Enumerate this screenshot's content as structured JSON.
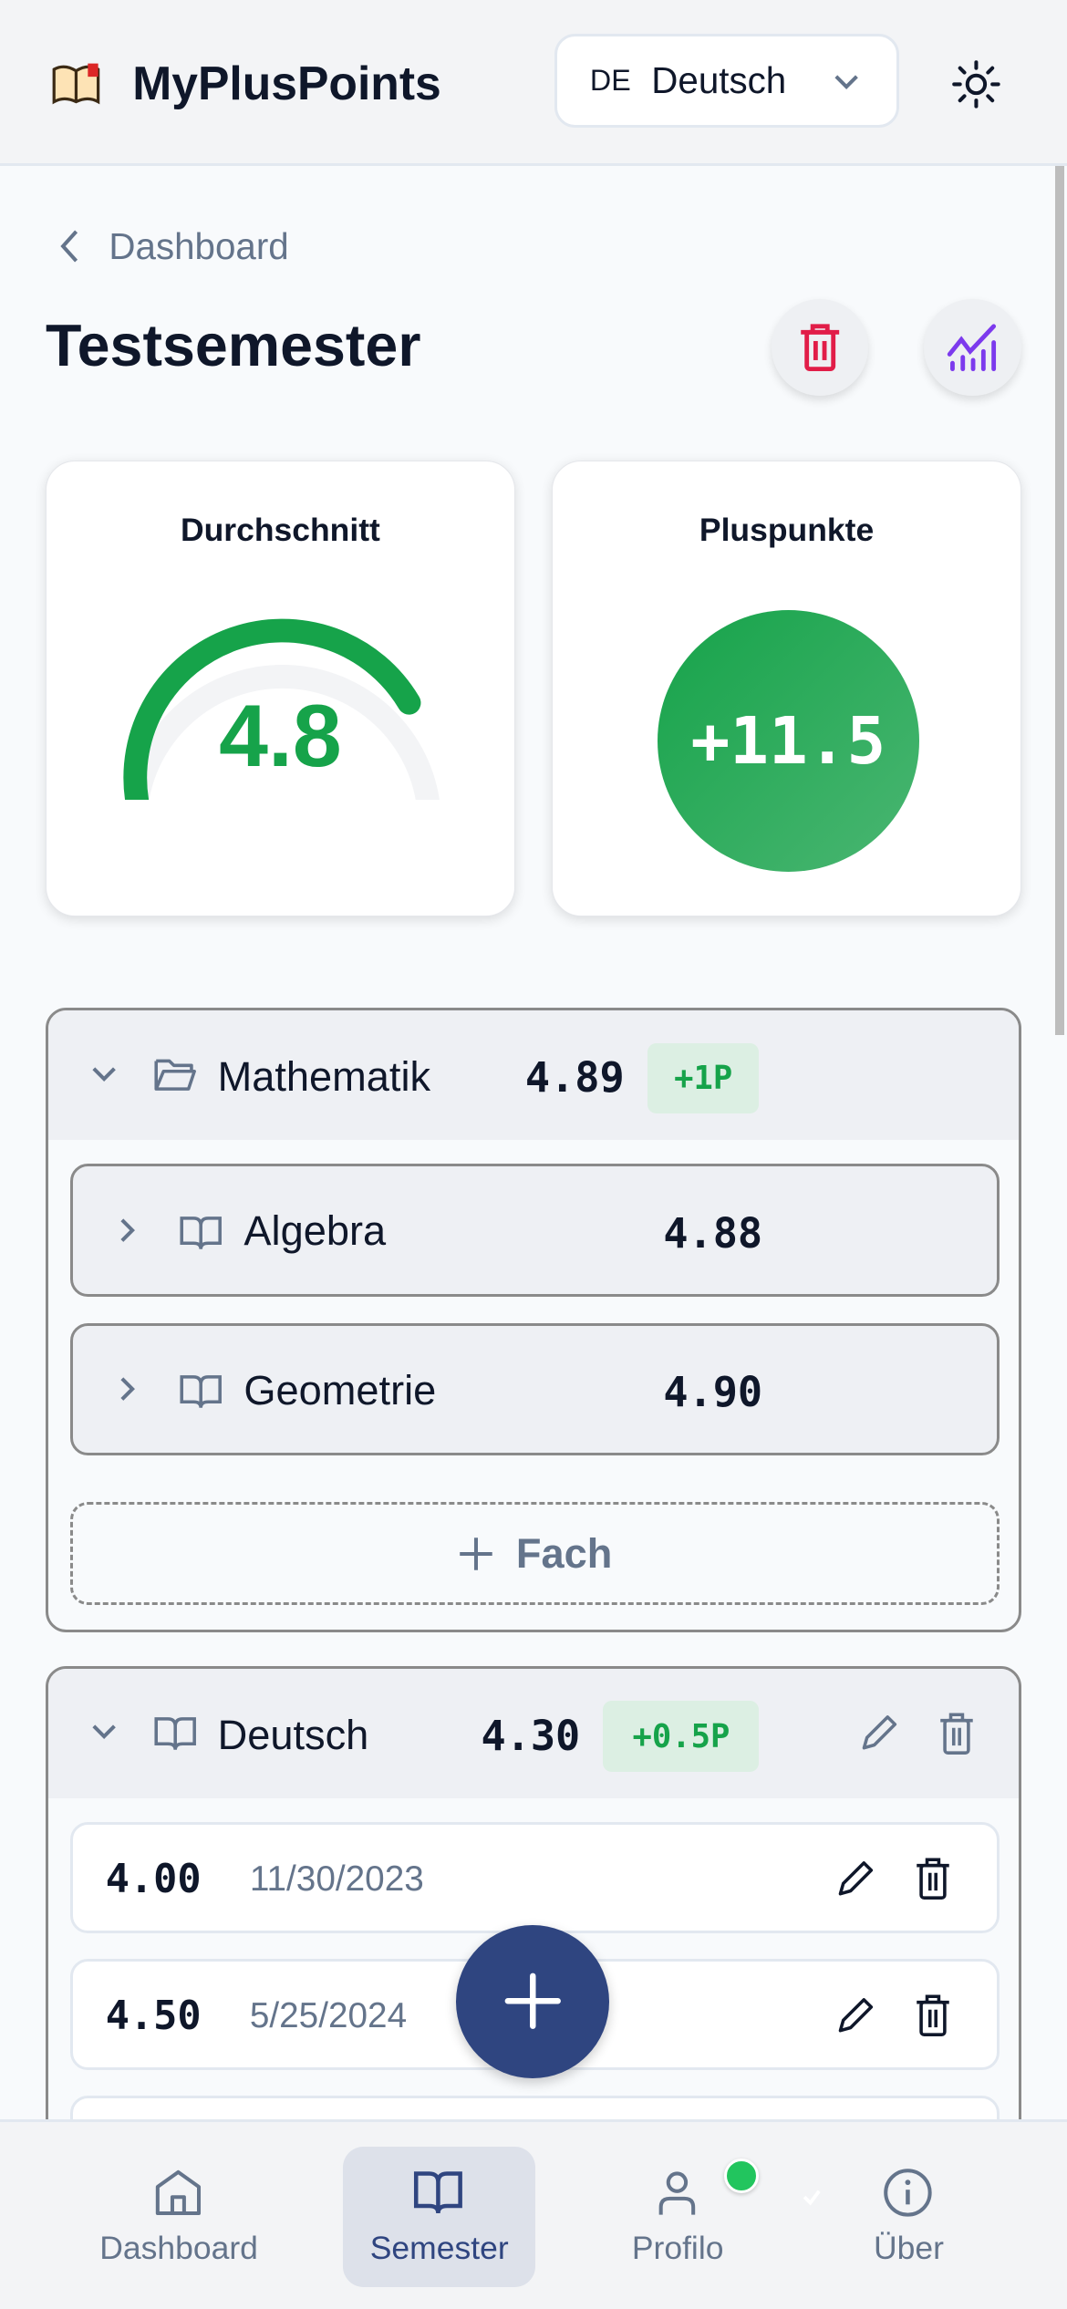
{
  "header": {
    "app_title": "MyPlusPoints",
    "language": {
      "code": "DE",
      "label": "Deutsch"
    },
    "theme_icon": "sun-icon"
  },
  "breadcrumb": {
    "label": "Dashboard"
  },
  "page_title": "Testsemester",
  "stats": {
    "average": {
      "title": "Durchschnitt",
      "value": "4.8",
      "gauge_fraction": 0.8,
      "color": "#16a34a"
    },
    "pluspoints": {
      "title": "Pluspunkte",
      "value": "+11.5"
    }
  },
  "groups": [
    {
      "name": "Mathematik",
      "value": "4.89",
      "badge": "+1P",
      "subjects": [
        {
          "name": "Algebra",
          "value": "4.88"
        },
        {
          "name": "Geometrie",
          "value": "4.90"
        }
      ],
      "add_label": "Fach"
    },
    {
      "name": "Deutsch",
      "value": "4.30",
      "badge": "+0.5P",
      "grades": [
        {
          "value": "4.00",
          "date": "11/30/2023"
        },
        {
          "value": "4.50",
          "date": "5/25/2024"
        }
      ]
    }
  ],
  "nav": [
    {
      "label": "Dashboard"
    },
    {
      "label": "Semester"
    },
    {
      "label": "Profilo"
    },
    {
      "label": "Über"
    }
  ],
  "colors": {
    "accent": "#2f4580",
    "green": "#16a34a",
    "danger": "#e11d48",
    "chart": "#7c3aed"
  }
}
